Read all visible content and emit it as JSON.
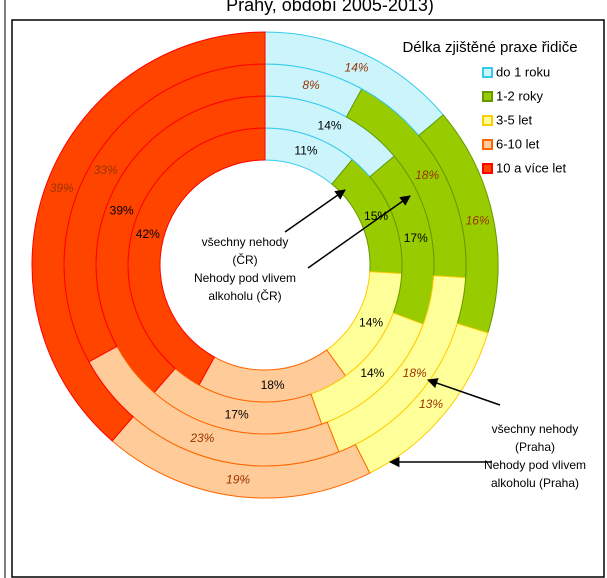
{
  "chart_data": {
    "type": "donut",
    "title": "Prahy, období 2005-2013)",
    "legend_title": "Délka zjištěné praxe řidiče",
    "categories": [
      "do 1 roku",
      "1-2 roky",
      "3-5 let",
      "6-10 let",
      "10 a více let"
    ],
    "colors": [
      "#ccf4fb",
      "#99cc00",
      "#ffff99",
      "#ffcc99",
      "#ff4400"
    ],
    "edge_colors": [
      "#33ccee",
      "#669900",
      "#ffcc00",
      "#ff6600",
      "#ff0000"
    ],
    "series": [
      {
        "values": [
          11,
          15,
          14,
          18,
          42
        ],
        "value_labels": [
          "11%",
          "15%",
          "14%",
          "18%",
          "42%"
        ]
      },
      {
        "values": [
          14,
          17,
          14,
          17,
          39
        ],
        "value_labels": [
          "14%",
          "17%",
          "14%",
          "17%",
          "39%"
        ]
      },
      {
        "values": [
          8,
          18,
          18,
          23,
          33
        ],
        "value_labels": [
          "8%",
          "18%",
          "18%",
          "23%",
          "33%"
        ]
      },
      {
        "values": [
          14,
          16,
          13,
          19,
          39
        ],
        "value_labels": [
          "14%",
          "16%",
          "13%",
          "19%",
          "39%"
        ]
      }
    ],
    "annotations": [
      {
        "lines": [
          "všechny nehody",
          "(ČR)",
          "Nehody pod vlivem",
          "alkoholu (ČR)"
        ]
      },
      {
        "lines": [
          "všechny nehody",
          "(Praha)",
          "Nehody pod vlivem",
          "alkoholu (Praha)"
        ]
      }
    ]
  }
}
